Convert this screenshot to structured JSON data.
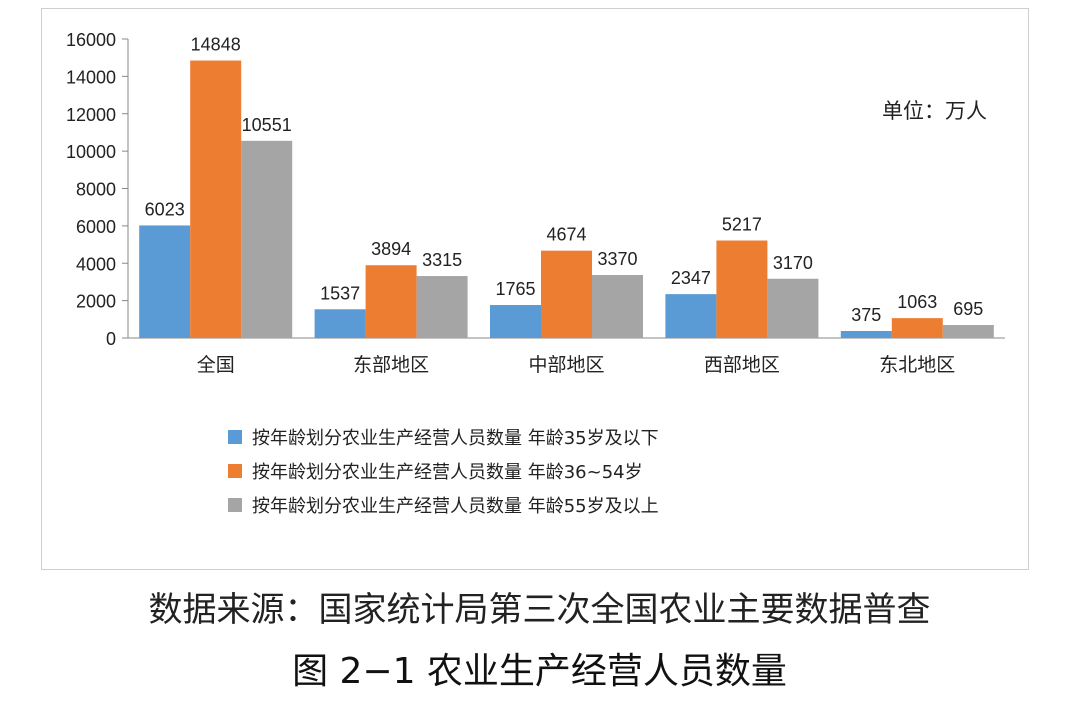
{
  "chart_data": {
    "type": "bar",
    "categories": [
      "全国",
      "东部地区",
      "中部地区",
      "西部地区",
      "东北地区"
    ],
    "series": [
      {
        "name": "按年龄划分农业生产经营人员数量 年龄35岁及以下",
        "color": "#5b9bd5",
        "values": [
          6023,
          1537,
          1765,
          2347,
          375
        ]
      },
      {
        "name": "按年龄划分农业生产经营人员数量 年龄36~54岁",
        "color": "#ed7d31",
        "values": [
          14848,
          3894,
          4674,
          5217,
          1063
        ]
      },
      {
        "name": "按年龄划分农业生产经营人员数量 年龄55岁及以上",
        "color": "#a5a5a5",
        "values": [
          10551,
          3315,
          3370,
          3170,
          695
        ]
      }
    ],
    "y_ticks": [
      0,
      2000,
      4000,
      6000,
      8000,
      10000,
      12000,
      14000,
      16000
    ],
    "ylim": [
      0,
      16000
    ],
    "unit_note": "单位：万人",
    "legend_position": "bottom-left",
    "grid": false
  },
  "source_text": "数据来源：国家统计局第三次全国农业主要数据普查",
  "caption": "图 2−1 农业生产经营人员数量"
}
